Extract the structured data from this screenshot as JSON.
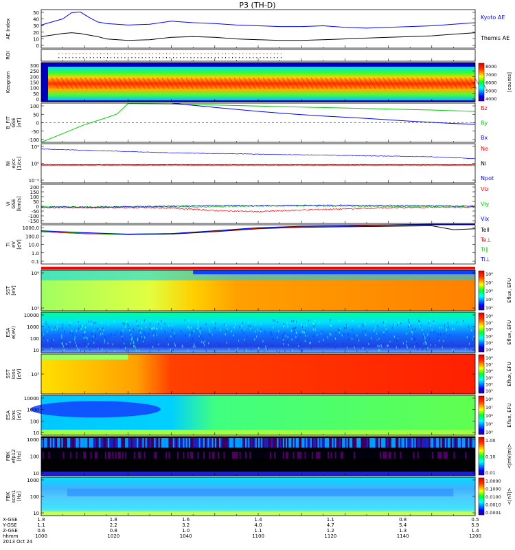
{
  "title": "P3 (TH-D)",
  "colors": {
    "blue": "#0000ff",
    "green": "#00cc00",
    "red": "#ff0000",
    "black": "#000000"
  },
  "chart_data": [
    {
      "type": "line",
      "id": "ae",
      "ylabel": [
        "AE Index"
      ],
      "yticks": [
        "50",
        "40",
        "30",
        "20",
        "10",
        "0"
      ],
      "ylim": [
        0,
        50
      ],
      "series": [
        {
          "name": "Kyoto AE",
          "color": "#0000ff",
          "x": [
            0,
            5,
            10,
            14,
            18,
            22,
            26,
            30,
            40,
            50,
            60,
            70,
            80,
            90,
            100,
            110,
            120,
            130,
            140,
            150,
            160,
            170,
            180,
            190,
            200
          ],
          "values": [
            30,
            34,
            38,
            46,
            47,
            40,
            34,
            32,
            30,
            31,
            35,
            33,
            32,
            30,
            29,
            28,
            28,
            29,
            27,
            26,
            27,
            28,
            29,
            31,
            33
          ]
        },
        {
          "name": "Themis AE",
          "color": "#000000",
          "x": [
            0,
            5,
            10,
            14,
            18,
            22,
            26,
            30,
            40,
            50,
            60,
            70,
            80,
            90,
            100,
            110,
            120,
            130,
            140,
            150,
            160,
            170,
            180,
            190,
            200
          ],
          "values": [
            15,
            17,
            19,
            20,
            19,
            17,
            15,
            12,
            10,
            11,
            14,
            15,
            14,
            12,
            11,
            10,
            10,
            11,
            12,
            13,
            14,
            15,
            16,
            18,
            20
          ]
        }
      ]
    },
    {
      "type": "table",
      "id": "roi",
      "ylabel": [
        "ROI"
      ],
      "yticks": []
    },
    {
      "type": "heatmap",
      "id": "keogram",
      "ylabel": [
        "Keogram"
      ],
      "yticks": [
        "300",
        "250",
        "200",
        "150",
        "100",
        "50",
        "0"
      ],
      "ylim": [
        0,
        300
      ],
      "colorbar": {
        "label": "[counts]",
        "ticks": [
          "8000",
          "7000",
          "6000",
          "5000",
          "4000"
        ]
      }
    },
    {
      "type": "line",
      "id": "bfit",
      "ylabel": [
        "B_FIT",
        "GSE",
        "[nT]"
      ],
      "yticks": [
        "100",
        "50",
        "0",
        "-50",
        "-100"
      ],
      "ylim": [
        -100,
        100
      ],
      "series": [
        {
          "name": "Bz",
          "color": "#ff0000",
          "x": [],
          "values": []
        },
        {
          "name": "By",
          "color": "#00cc00",
          "x": [
            0,
            10,
            20,
            30,
            35,
            40,
            60,
            80,
            100,
            120,
            140,
            160,
            180,
            200
          ],
          "values": [
            -100,
            -55,
            -10,
            25,
            45,
            98,
            95,
            90,
            85,
            80,
            75,
            70,
            65,
            58
          ]
        },
        {
          "name": "Bx",
          "color": "#0000ff",
          "x": [
            60,
            80,
            90,
            100,
            110,
            120,
            130,
            140,
            150,
            160,
            170,
            180,
            190,
            200
          ],
          "values": [
            100,
            78,
            68,
            58,
            49,
            41,
            34,
            28,
            22,
            15,
            8,
            2,
            -4,
            -8
          ]
        }
      ]
    },
    {
      "type": "line",
      "id": "ni",
      "ylabel": [
        "Ni",
        "e/cc",
        "[1/cc]"
      ],
      "yticks": [
        "10²",
        "10⁰",
        "10⁻²"
      ],
      "ylim": [
        -3,
        3
      ],
      "series": [
        {
          "name": "Ne",
          "color": "#ff0000",
          "x": [
            0,
            200
          ],
          "values": [
            -0.3,
            -0.3
          ]
        },
        {
          "name": "Ni",
          "color": "#000000",
          "x": [
            0,
            200
          ],
          "values": [
            -0.2,
            -0.2
          ]
        },
        {
          "name": "Npot",
          "color": "#0000ff",
          "x": [
            0,
            20,
            40,
            60,
            80,
            100,
            120,
            140,
            160,
            180,
            200
          ],
          "values": [
            2.2,
            2.0,
            1.8,
            1.6,
            1.5,
            1.4,
            1.3,
            1.2,
            1.1,
            1.0,
            0.7
          ]
        }
      ]
    },
    {
      "type": "line",
      "id": "vi",
      "ylabel": [
        "Vi",
        "GSE",
        "[km/s]"
      ],
      "yticks": [
        "200",
        "150",
        "100",
        "50",
        "0",
        "-50",
        "-100",
        "-150"
      ],
      "ylim": [
        -150,
        200
      ],
      "series": [
        {
          "name": "Viz",
          "color": "#ff0000",
          "x": [
            0,
            20,
            40,
            60,
            80,
            100,
            120,
            140,
            160,
            180,
            200
          ],
          "values": [
            -5,
            -8,
            -8,
            -12,
            -35,
            -45,
            -30,
            -20,
            -10,
            -5,
            -5
          ]
        },
        {
          "name": "Viy",
          "color": "#00cc00",
          "x": [
            0,
            20,
            40,
            60,
            80,
            100,
            120,
            140,
            160,
            180,
            200
          ],
          "values": [
            0,
            -2,
            0,
            -2,
            0,
            5,
            8,
            5,
            2,
            0,
            0
          ]
        },
        {
          "name": "Vix",
          "color": "#0000ff",
          "x": [
            0,
            20,
            40,
            60,
            80,
            100,
            120,
            140,
            160,
            180,
            200
          ],
          "values": [
            -5,
            -5,
            -2,
            5,
            10,
            8,
            10,
            12,
            10,
            8,
            5
          ]
        }
      ]
    },
    {
      "type": "line",
      "id": "ti",
      "ylabel": [
        "Ti",
        "eV",
        "[eV]"
      ],
      "yticks": [
        "1000.0",
        "100.0",
        "10.0",
        "1.0",
        "0.1"
      ],
      "ylim": [
        -1,
        3
      ],
      "series": [
        {
          "name": "Tell",
          "color": "#000000",
          "x": [
            0,
            20,
            40,
            60,
            80,
            100,
            120,
            140,
            160,
            180,
            190,
            200
          ],
          "values": [
            2.3,
            2.1,
            2.0,
            2.05,
            2.3,
            2.6,
            2.75,
            2.8,
            2.85,
            2.9,
            2.5,
            2.6
          ]
        },
        {
          "name": "Te⊥",
          "color": "#ff0000",
          "x": [
            0,
            20,
            40,
            60,
            80,
            100,
            120,
            140,
            160,
            180,
            200
          ],
          "values": [
            2.3,
            2.1,
            2.05,
            2.1,
            2.35,
            2.65,
            2.8,
            2.85,
            2.95,
            3.0,
            3.0
          ]
        },
        {
          "name": "Ti∥",
          "color": "#00cc00",
          "x": [
            0,
            20,
            40,
            60,
            80,
            100,
            120,
            140,
            160,
            180,
            200
          ],
          "values": [
            2.35,
            2.15,
            2.0,
            2.1,
            2.4,
            2.7,
            2.85,
            2.9,
            3.0,
            3.05,
            3.05
          ]
        },
        {
          "name": "Ti⊥",
          "color": "#0000ff",
          "x": [
            0,
            20,
            40,
            60,
            80,
            100,
            120,
            140,
            160,
            180,
            200
          ],
          "values": [
            2.4,
            2.2,
            2.05,
            2.1,
            2.4,
            2.7,
            2.85,
            2.9,
            3.0,
            3.05,
            3.05
          ]
        }
      ]
    },
    {
      "type": "heatmap",
      "id": "sst_e",
      "ylabel": [
        "SST",
        "[eV]"
      ],
      "yticks": [
        "10⁶",
        "10⁵"
      ],
      "colorbar": {
        "label": "Eflux, EFU",
        "ticks": [
          "10⁸",
          "10⁷",
          "10⁶",
          "10⁵",
          "10⁴"
        ]
      }
    },
    {
      "type": "heatmap",
      "id": "esa_e",
      "ylabel": [
        "ESA",
        "e(eV)"
      ],
      "yticks": [
        "10000",
        "1000",
        "100",
        "10"
      ],
      "colorbar": {
        "label": "Eflux, EFU",
        "ticks": [
          "10⁸",
          "10⁷",
          "10⁶",
          "10⁵",
          "10⁴",
          "10³"
        ]
      }
    },
    {
      "type": "heatmap",
      "id": "sst_i",
      "ylabel": [
        "SST",
        "ions",
        "[eV]"
      ],
      "yticks": [
        "10⁵"
      ],
      "colorbar": {
        "label": "Eflux, EFU",
        "ticks": [
          "10⁸",
          "10⁷",
          "10⁶",
          "10⁵",
          "10⁴",
          "10³"
        ]
      }
    },
    {
      "type": "heatmap",
      "id": "esa_i",
      "ylabel": [
        "ESA",
        "ions",
        "[eV]"
      ],
      "yticks": [
        "10000",
        "1000",
        "100",
        "10"
      ],
      "colorbar": {
        "label": "Eflux, EFU",
        "ticks": [
          "10⁸",
          "10⁷",
          "10⁶",
          "10⁵",
          "10⁴"
        ]
      }
    },
    {
      "type": "heatmap",
      "id": "fbk1",
      "ylabel": [
        "FBK",
        "efp12",
        "[Hz]"
      ],
      "yticks": [
        "1000",
        "100",
        "10"
      ],
      "colorbar": {
        "label": "<|mV/m|>",
        "ticks": [
          "1.00",
          "0.10",
          "0.01"
        ]
      }
    },
    {
      "type": "heatmap",
      "id": "fbk2",
      "ylabel": [
        "FBK",
        "scm1",
        "[Hz]"
      ],
      "yticks": [
        "1000",
        "100",
        "10"
      ],
      "colorbar": {
        "label": "<|nT|>",
        "ticks": [
          "1.0000",
          "0.1000",
          "0.0100",
          "0.0010",
          "0.0001"
        ]
      }
    }
  ],
  "x_axis": {
    "rows": [
      {
        "label": "X-GSE",
        "values": [
          "1.8",
          "1.8",
          "1.6",
          "1.4",
          "1.1",
          "0.8",
          "0.5"
        ]
      },
      {
        "label": "Y-GSE",
        "values": [
          "1.1",
          "2.2",
          "3.2",
          "4.0",
          "4.7",
          "5.4",
          "5.9"
        ]
      },
      {
        "label": "Z-GSE",
        "values": [
          "0.6",
          "0.8",
          "1.0",
          "1.1",
          "1.2",
          "1.3",
          "1.4"
        ]
      },
      {
        "label": "hhmm",
        "values": [
          "1000",
          "1020",
          "1040",
          "1100",
          "1120",
          "1140",
          "1200"
        ]
      }
    ],
    "date": "2013 Oct 24"
  }
}
